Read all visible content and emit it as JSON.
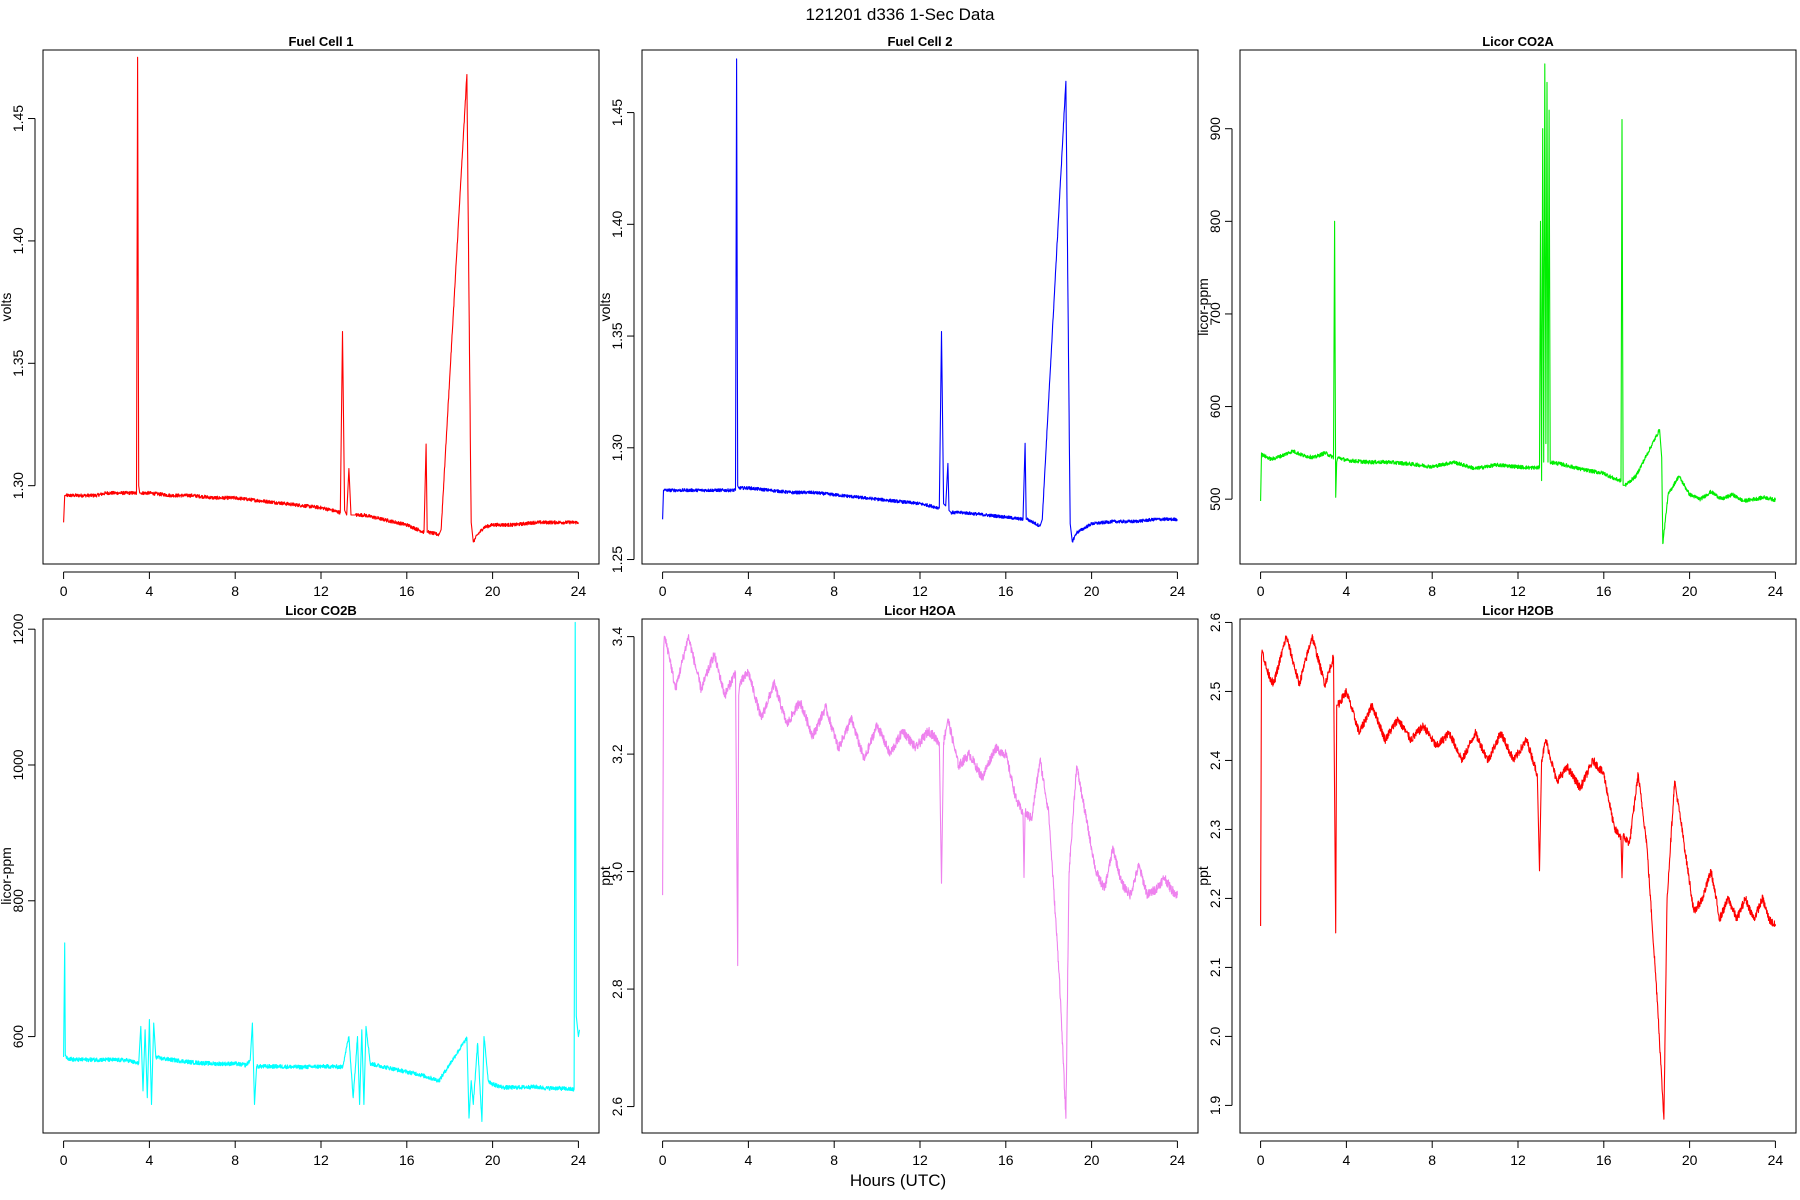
{
  "figure": {
    "title": "121201   d336   1-Sec Data",
    "xlabel": "Hours (UTC)"
  },
  "chart_data": [
    {
      "type": "line",
      "title": "Fuel Cell 1",
      "ylabel": "volts",
      "color": "#ff0000",
      "xlim": [
        0,
        24
      ],
      "ylim": [
        1.268,
        1.478
      ],
      "xticks": [
        0,
        4,
        8,
        12,
        16,
        20,
        24
      ],
      "yticks": [
        1.3,
        1.35,
        1.4,
        1.45
      ],
      "ytick_labels": [
        "1.30",
        "1.35",
        "1.40",
        "1.45"
      ],
      "grid": false,
      "series": [
        {
          "x": [
            0,
            0.05,
            0.06,
            0.1,
            0.5,
            1,
            1.5,
            2,
            2.5,
            3,
            3.4,
            3.45,
            3.5,
            3.55,
            3.6,
            4,
            5,
            6,
            7,
            8,
            9,
            10,
            11,
            12,
            12.5,
            12.9,
            13.0,
            13.1,
            13.2,
            13.3,
            13.4,
            13.5,
            13.6,
            14,
            15,
            16,
            16.8,
            16.9,
            16.95,
            17.0,
            17.5,
            17.6,
            18.8,
            19.0,
            19.1,
            19.3,
            19.6,
            20,
            21,
            22,
            23,
            24
          ],
          "y": [
            1.285,
            1.296,
            1.296,
            1.296,
            1.296,
            1.296,
            1.296,
            1.297,
            1.297,
            1.297,
            1.297,
            1.475,
            1.3,
            1.297,
            1.297,
            1.297,
            1.296,
            1.296,
            1.295,
            1.295,
            1.294,
            1.293,
            1.292,
            1.291,
            1.29,
            1.289,
            1.363,
            1.29,
            1.288,
            1.307,
            1.288,
            1.288,
            1.288,
            1.288,
            1.286,
            1.284,
            1.281,
            1.317,
            1.281,
            1.281,
            1.28,
            1.282,
            1.468,
            1.285,
            1.277,
            1.28,
            1.283,
            1.284,
            1.284,
            1.285,
            1.285,
            1.285
          ],
          "noise": 0.0007
        }
      ]
    },
    {
      "type": "line",
      "title": "Fuel Cell 2",
      "ylabel": "volts",
      "color": "#0000ff",
      "xlim": [
        0,
        24
      ],
      "ylim": [
        1.248,
        1.478
      ],
      "xticks": [
        0,
        4,
        8,
        12,
        16,
        20,
        24
      ],
      "yticks": [
        1.25,
        1.3,
        1.35,
        1.4,
        1.45
      ],
      "ytick_labels": [
        "1.25",
        "1.30",
        "1.35",
        "1.40",
        "1.45"
      ],
      "grid": false,
      "series": [
        {
          "x": [
            0,
            0.04,
            0.06,
            0.5,
            1,
            2,
            3,
            3.4,
            3.45,
            3.5,
            3.55,
            4,
            5,
            6,
            7,
            8,
            9,
            10,
            11,
            12,
            12.5,
            12.9,
            13.0,
            13.1,
            13.2,
            13.3,
            13.35,
            13.45,
            14,
            15,
            16,
            16.8,
            16.9,
            16.95,
            17.0,
            17.6,
            17.7,
            18.8,
            19.0,
            19.1,
            19.3,
            20,
            21,
            22,
            23,
            24
          ],
          "y": [
            1.268,
            1.281,
            1.281,
            1.281,
            1.281,
            1.281,
            1.281,
            1.281,
            1.474,
            1.283,
            1.282,
            1.282,
            1.281,
            1.28,
            1.28,
            1.279,
            1.278,
            1.277,
            1.276,
            1.275,
            1.274,
            1.273,
            1.352,
            1.275,
            1.274,
            1.293,
            1.272,
            1.271,
            1.271,
            1.27,
            1.269,
            1.268,
            1.302,
            1.268,
            1.268,
            1.265,
            1.268,
            1.464,
            1.266,
            1.258,
            1.262,
            1.266,
            1.267,
            1.267,
            1.268,
            1.268
          ],
          "noise": 0.0007
        }
      ]
    },
    {
      "type": "line",
      "title": "Licor CO2A",
      "ylabel": "licor-ppm",
      "color": "#00ee00",
      "xlim": [
        0,
        24
      ],
      "ylim": [
        430,
        985
      ],
      "xticks": [
        0,
        4,
        8,
        12,
        16,
        20,
        24
      ],
      "yticks": [
        500,
        600,
        700,
        800,
        900
      ],
      "ytick_labels": [
        "500",
        "600",
        "700",
        "800",
        "900"
      ],
      "grid": false,
      "series": [
        {
          "x": [
            0,
            0.04,
            0.06,
            0.5,
            1,
            1.5,
            2,
            2.5,
            3,
            3.4,
            3.45,
            3.5,
            3.55,
            3.6,
            4,
            5,
            6,
            7,
            8,
            9,
            10,
            11,
            12,
            12.5,
            13.0,
            13.05,
            13.1,
            13.15,
            13.2,
            13.25,
            13.3,
            13.35,
            13.4,
            13.45,
            13.5,
            14,
            15,
            16,
            16.5,
            16.8,
            16.85,
            16.9,
            17,
            17.5,
            18.6,
            18.7,
            18.75,
            19,
            19.5,
            20,
            20.5,
            21,
            21.5,
            22,
            22.5,
            23,
            23.5,
            24
          ],
          "y": [
            498,
            550,
            548,
            543,
            547,
            552,
            547,
            545,
            550,
            545,
            800,
            502,
            540,
            545,
            542,
            540,
            540,
            538,
            535,
            540,
            533,
            537,
            535,
            534,
            534,
            800,
            520,
            900,
            540,
            970,
            560,
            950,
            540,
            920,
            540,
            538,
            532,
            528,
            522,
            520,
            910,
            515,
            515,
            525,
            575,
            545,
            452,
            505,
            525,
            505,
            500,
            508,
            500,
            505,
            498,
            500,
            502,
            499
          ],
          "noise": 2.0
        }
      ]
    },
    {
      "type": "line",
      "title": "Licor CO2B",
      "ylabel": "licor-ppm",
      "color": "#00ffff",
      "xlim": [
        0,
        24
      ],
      "ylim": [
        458,
        1215
      ],
      "xticks": [
        0,
        4,
        8,
        12,
        16,
        20,
        24
      ],
      "yticks": [
        600,
        800,
        1000,
        1200
      ],
      "ytick_labels": [
        "600",
        "800",
        "1000",
        "1200"
      ],
      "grid": false,
      "series": [
        {
          "x": [
            0,
            0.05,
            0.08,
            0.2,
            0.5,
            1,
            2,
            3,
            3.5,
            3.6,
            3.7,
            3.8,
            3.9,
            4.0,
            4.1,
            4.2,
            4.3,
            4.5,
            5,
            6,
            7,
            8,
            8.5,
            8.7,
            8.8,
            8.9,
            9.0,
            9.2,
            10,
            11,
            12,
            12.5,
            13,
            13.3,
            13.5,
            13.7,
            13.8,
            13.9,
            14.0,
            14.1,
            14.3,
            15,
            16,
            16.5,
            17,
            17.5,
            18.8,
            18.9,
            19.0,
            19.1,
            19.3,
            19.5,
            19.6,
            19.8,
            20,
            20.5,
            21,
            22,
            22.5,
            23,
            23.5,
            23.8,
            23.85,
            23.9,
            24.0,
            24.05
          ],
          "y": [
            570,
            738,
            572,
            568,
            566,
            566,
            566,
            565,
            560,
            615,
            520,
            610,
            510,
            625,
            500,
            620,
            570,
            568,
            566,
            562,
            560,
            560,
            558,
            565,
            620,
            500,
            556,
            556,
            556,
            555,
            556,
            556,
            555,
            600,
            510,
            600,
            500,
            610,
            500,
            615,
            560,
            555,
            548,
            545,
            540,
            535,
            598,
            480,
            535,
            500,
            590,
            475,
            600,
            535,
            530,
            525,
            525,
            526,
            524,
            524,
            523,
            522,
            1210,
            630,
            600,
            610
          ],
          "noise": 3.0
        }
      ]
    },
    {
      "type": "line",
      "title": "Licor H2OA",
      "ylabel": "ppt",
      "color": "#ee82ee",
      "xlim": [
        0,
        24
      ],
      "ylim": [
        2.555,
        3.43
      ],
      "xticks": [
        0,
        4,
        8,
        12,
        16,
        20,
        24
      ],
      "yticks": [
        2.6,
        2.8,
        3.0,
        3.2,
        3.4
      ],
      "ytick_labels": [
        "2.6",
        "2.8",
        "3.0",
        "3.2",
        "3.4"
      ],
      "grid": false,
      "series": [
        {
          "x": [
            0,
            0.05,
            0.08,
            0.3,
            0.6,
            1.2,
            1.8,
            2.4,
            2.9,
            3.4,
            3.5,
            3.55,
            3.6,
            4.0,
            4.6,
            5.2,
            5.8,
            6.4,
            7.0,
            7.6,
            8.2,
            8.8,
            9.4,
            10.0,
            10.6,
            11.2,
            11.8,
            12.4,
            12.9,
            13.0,
            13.1,
            13.3,
            13.8,
            14.3,
            14.9,
            15.5,
            16.0,
            16.5,
            16.8,
            16.85,
            16.9,
            17.2,
            17.6,
            18.0,
            18.5,
            18.8,
            18.95,
            19.3,
            19.6,
            20.2,
            20.6,
            21.0,
            21.4,
            21.8,
            22.2,
            22.6,
            23.0,
            23.4,
            23.7,
            24
          ],
          "y": [
            2.96,
            3.38,
            3.4,
            3.37,
            3.31,
            3.4,
            3.31,
            3.37,
            3.3,
            3.34,
            2.84,
            3.3,
            3.32,
            3.34,
            3.26,
            3.32,
            3.25,
            3.29,
            3.23,
            3.28,
            3.21,
            3.26,
            3.19,
            3.25,
            3.2,
            3.24,
            3.21,
            3.24,
            3.22,
            2.98,
            3.22,
            3.26,
            3.18,
            3.2,
            3.16,
            3.21,
            3.2,
            3.12,
            3.1,
            2.99,
            3.1,
            3.09,
            3.19,
            3.1,
            2.82,
            2.58,
            3.0,
            3.18,
            3.12,
            3.0,
            2.97,
            3.04,
            2.98,
            2.96,
            3.01,
            2.96,
            2.97,
            2.99,
            2.97,
            2.96
          ],
          "noise": 0.008
        }
      ]
    },
    {
      "type": "line",
      "title": "Licor H2OB",
      "ylabel": "ppt",
      "color": "#ff0000",
      "xlim": [
        0,
        24
      ],
      "ylim": [
        1.86,
        2.605
      ],
      "xticks": [
        0,
        4,
        8,
        12,
        16,
        20,
        24
      ],
      "yticks": [
        1.9,
        2.0,
        2.1,
        2.2,
        2.3,
        2.4,
        2.5,
        2.6
      ],
      "ytick_labels": [
        "1.9",
        "2.0",
        "2.1",
        "2.2",
        "2.3",
        "2.4",
        "2.5",
        "2.6"
      ],
      "grid": false,
      "series": [
        {
          "x": [
            0,
            0.04,
            0.07,
            0.3,
            0.6,
            1.2,
            1.8,
            2.4,
            3.0,
            3.4,
            3.5,
            3.55,
            3.6,
            4.0,
            4.6,
            5.2,
            5.8,
            6.4,
            7.0,
            7.6,
            8.2,
            8.8,
            9.4,
            10.0,
            10.6,
            11.2,
            11.8,
            12.4,
            12.9,
            13.0,
            13.1,
            13.3,
            13.8,
            14.3,
            14.9,
            15.5,
            16.0,
            16.5,
            16.8,
            16.85,
            16.9,
            17.2,
            17.6,
            18.0,
            18.5,
            18.8,
            18.95,
            19.3,
            19.6,
            20.2,
            20.6,
            21.0,
            21.4,
            21.8,
            22.2,
            22.6,
            23.0,
            23.4,
            23.7,
            24
          ],
          "y": [
            2.16,
            2.55,
            2.56,
            2.53,
            2.51,
            2.58,
            2.51,
            2.58,
            2.51,
            2.55,
            2.15,
            2.48,
            2.48,
            2.5,
            2.44,
            2.48,
            2.43,
            2.46,
            2.43,
            2.45,
            2.42,
            2.44,
            2.4,
            2.44,
            2.4,
            2.44,
            2.4,
            2.43,
            2.38,
            2.24,
            2.4,
            2.43,
            2.37,
            2.39,
            2.36,
            2.4,
            2.38,
            2.3,
            2.29,
            2.23,
            2.29,
            2.28,
            2.38,
            2.28,
            2.05,
            1.88,
            2.2,
            2.37,
            2.31,
            2.18,
            2.2,
            2.24,
            2.17,
            2.2,
            2.17,
            2.2,
            2.17,
            2.2,
            2.17,
            2.16
          ],
          "noise": 0.006
        }
      ]
    }
  ]
}
